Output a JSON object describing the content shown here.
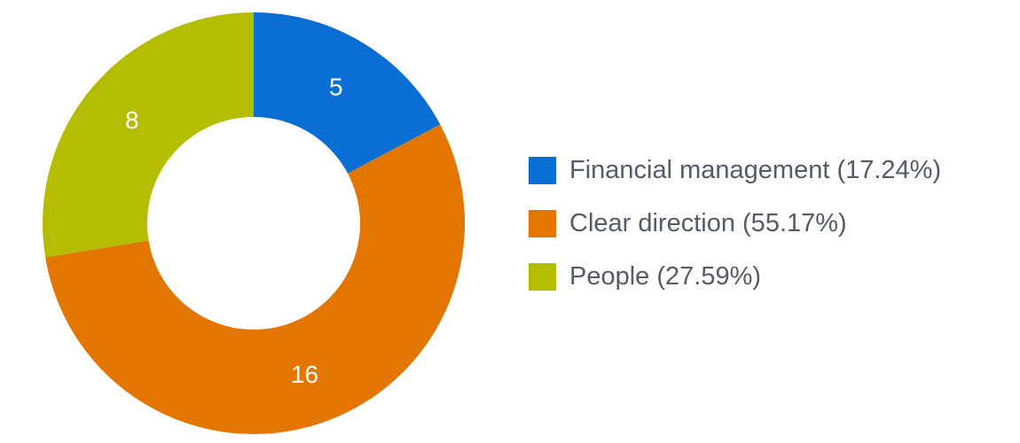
{
  "chart_data": {
    "type": "pie",
    "variant": "donut",
    "categories": [
      "Financial management",
      "Clear direction",
      "People"
    ],
    "values": [
      5,
      16,
      8
    ],
    "percentages": [
      "17.24%",
      "55.17%",
      "27.59%"
    ],
    "data_labels": [
      "5",
      "16",
      "8"
    ],
    "colors": [
      "#0a6fd4",
      "#e27600",
      "#b5bd00"
    ],
    "legend_labels": [
      "Financial management (17.24%)",
      "Clear direction (55.17%)",
      "People (27.59%)"
    ],
    "legend_position": "right",
    "title": ""
  }
}
